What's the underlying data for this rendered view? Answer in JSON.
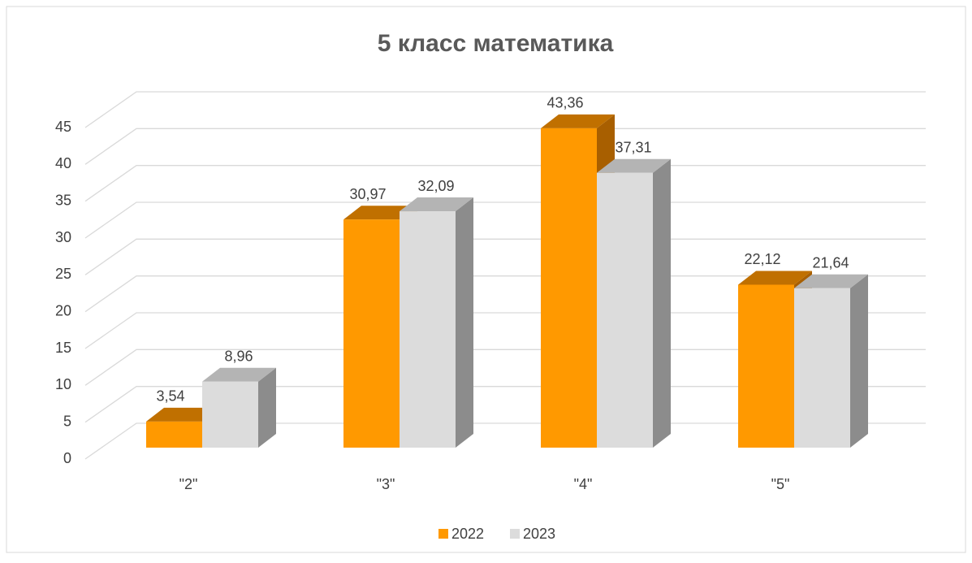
{
  "chart_data": {
    "type": "bar3d",
    "title": "5 класс математика",
    "categories": [
      "\"2\"",
      "\"3\"",
      "\"4\"",
      "\"5\""
    ],
    "series": [
      {
        "name": "2022",
        "color": "#ff9900",
        "values": [
          3.54,
          30.97,
          43.36,
          22.12
        ],
        "value_labels": [
          "3,54",
          "30,97",
          "43,36",
          "22,12"
        ]
      },
      {
        "name": "2023",
        "color": "#dcdcdc",
        "values": [
          8.96,
          32.09,
          37.31,
          21.64
        ],
        "value_labels": [
          "8,96",
          "32,09",
          "37,31",
          "21,64"
        ]
      }
    ],
    "ylim": [
      0,
      45
    ],
    "yticks": [
      0,
      5,
      10,
      15,
      20,
      25,
      30,
      35,
      40,
      45
    ],
    "grid": true,
    "legend": "bottom"
  }
}
